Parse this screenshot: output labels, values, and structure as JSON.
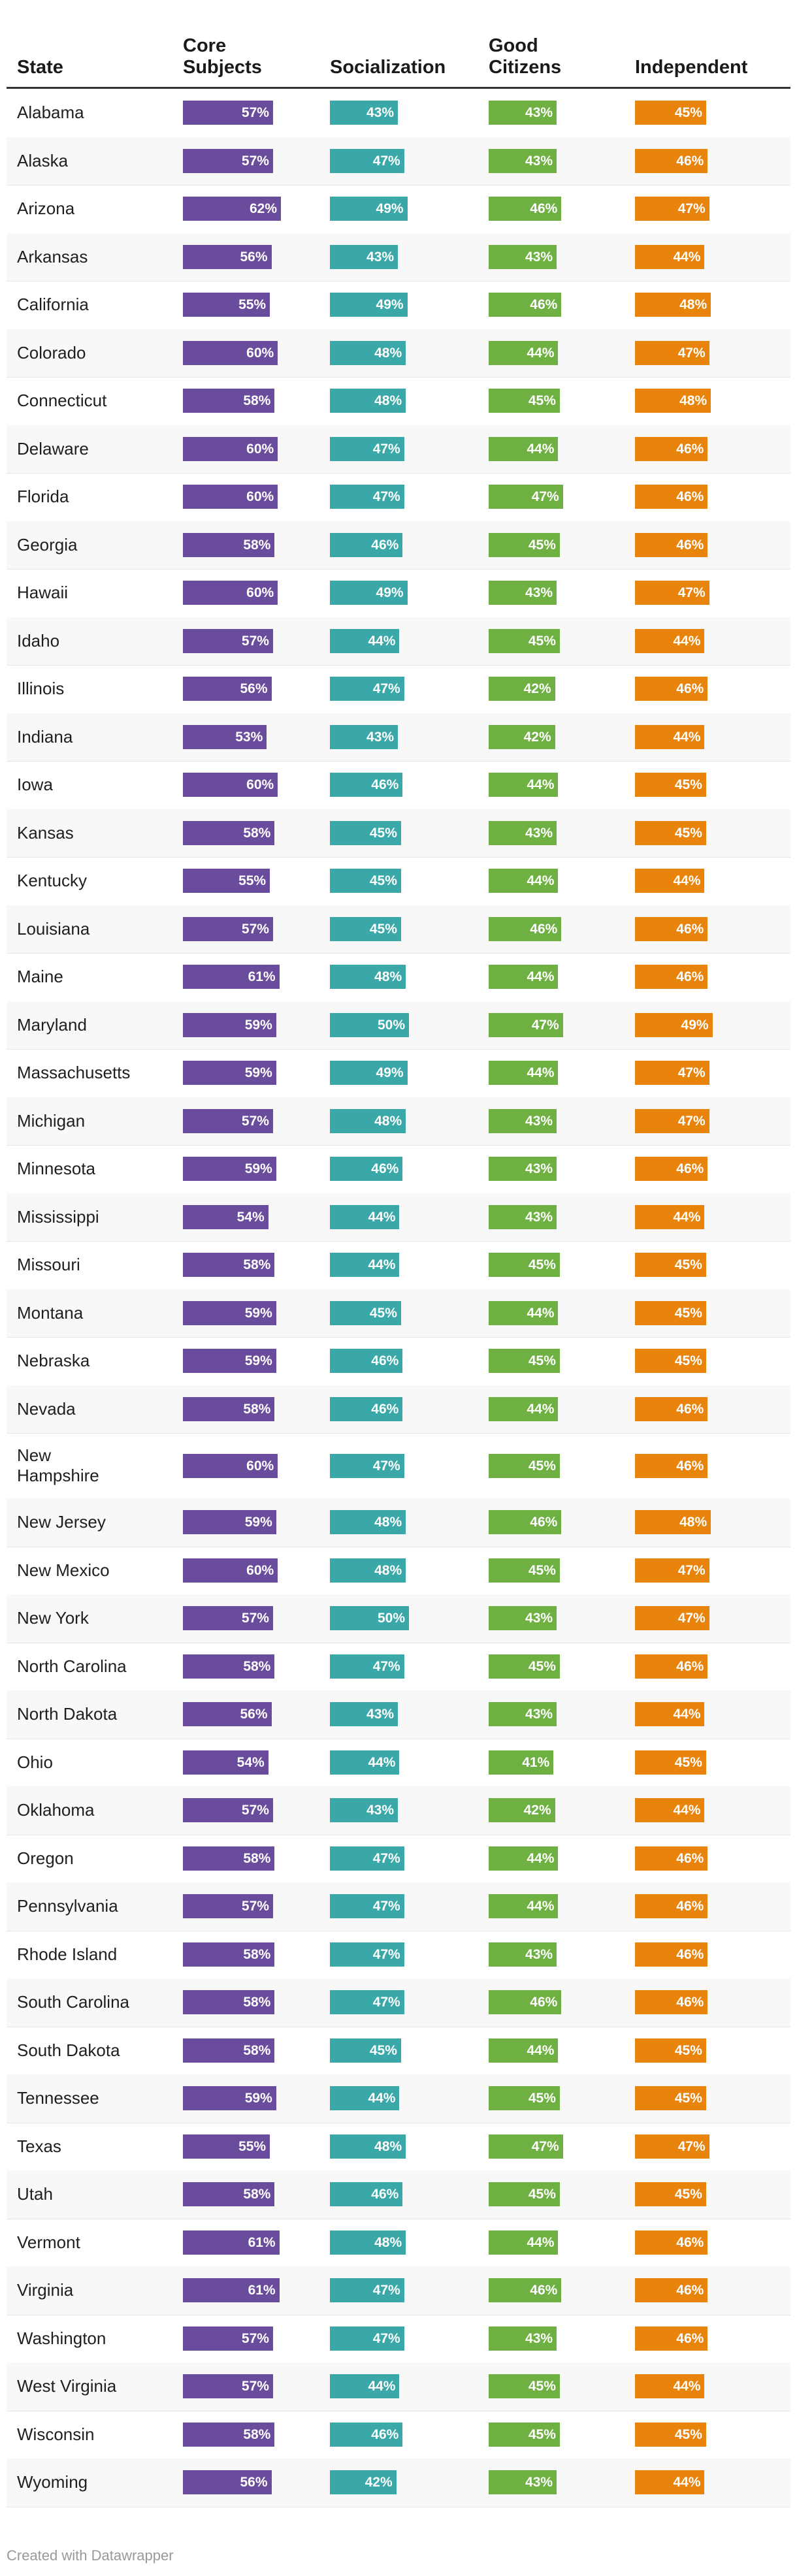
{
  "chart_data": {
    "type": "table",
    "columns": [
      {
        "key": "state",
        "label_lines": [
          "State"
        ]
      },
      {
        "key": "core",
        "label_lines": [
          "Core",
          "Subjects"
        ],
        "color": "#6a4c9c"
      },
      {
        "key": "social",
        "label_lines": [
          "Socialization"
        ],
        "color": "#3aa8a8"
      },
      {
        "key": "citizens",
        "label_lines": [
          "Good",
          "Citizens"
        ],
        "color": "#6fb043"
      },
      {
        "key": "independent",
        "label_lines": [
          "Independent"
        ],
        "color": "#e8830c"
      }
    ],
    "unit_suffix": "%",
    "rows": [
      {
        "state": "Alabama",
        "values": [
          57,
          43,
          43,
          45
        ]
      },
      {
        "state": "Alaska",
        "values": [
          57,
          47,
          43,
          46
        ]
      },
      {
        "state": "Arizona",
        "values": [
          62,
          49,
          46,
          47
        ]
      },
      {
        "state": "Arkansas",
        "values": [
          56,
          43,
          43,
          44
        ]
      },
      {
        "state": "California",
        "values": [
          55,
          49,
          46,
          48
        ]
      },
      {
        "state": "Colorado",
        "values": [
          60,
          48,
          44,
          47
        ]
      },
      {
        "state": "Connecticut",
        "values": [
          58,
          48,
          45,
          48
        ]
      },
      {
        "state": "Delaware",
        "values": [
          60,
          47,
          44,
          46
        ]
      },
      {
        "state": "Florida",
        "values": [
          60,
          47,
          47,
          46
        ]
      },
      {
        "state": "Georgia",
        "values": [
          58,
          46,
          45,
          46
        ]
      },
      {
        "state": "Hawaii",
        "values": [
          60,
          49,
          43,
          47
        ]
      },
      {
        "state": "Idaho",
        "values": [
          57,
          44,
          45,
          44
        ]
      },
      {
        "state": "Illinois",
        "values": [
          56,
          47,
          42,
          46
        ]
      },
      {
        "state": "Indiana",
        "values": [
          53,
          43,
          42,
          44
        ]
      },
      {
        "state": "Iowa",
        "values": [
          60,
          46,
          44,
          45
        ]
      },
      {
        "state": "Kansas",
        "values": [
          58,
          45,
          43,
          45
        ]
      },
      {
        "state": "Kentucky",
        "values": [
          55,
          45,
          44,
          44
        ]
      },
      {
        "state": "Louisiana",
        "values": [
          57,
          45,
          46,
          46
        ]
      },
      {
        "state": "Maine",
        "values": [
          61,
          48,
          44,
          46
        ]
      },
      {
        "state": "Maryland",
        "values": [
          59,
          50,
          47,
          49
        ]
      },
      {
        "state": "Massachusetts",
        "values": [
          59,
          49,
          44,
          47
        ]
      },
      {
        "state": "Michigan",
        "values": [
          57,
          48,
          43,
          47
        ]
      },
      {
        "state": "Minnesota",
        "values": [
          59,
          46,
          43,
          46
        ]
      },
      {
        "state": "Mississippi",
        "values": [
          54,
          44,
          43,
          44
        ]
      },
      {
        "state": "Missouri",
        "values": [
          58,
          44,
          45,
          45
        ]
      },
      {
        "state": "Montana",
        "values": [
          59,
          45,
          44,
          45
        ]
      },
      {
        "state": "Nebraska",
        "values": [
          59,
          46,
          45,
          45
        ]
      },
      {
        "state": "Nevada",
        "values": [
          58,
          46,
          44,
          46
        ]
      },
      {
        "state": "New Hampshire",
        "label_lines": [
          "New",
          "Hampshire"
        ],
        "values": [
          60,
          47,
          45,
          46
        ]
      },
      {
        "state": "New Jersey",
        "values": [
          59,
          48,
          46,
          48
        ]
      },
      {
        "state": "New Mexico",
        "values": [
          60,
          48,
          45,
          47
        ]
      },
      {
        "state": "New York",
        "values": [
          57,
          50,
          43,
          47
        ]
      },
      {
        "state": "North Carolina",
        "values": [
          58,
          47,
          45,
          46
        ]
      },
      {
        "state": "North Dakota",
        "values": [
          56,
          43,
          43,
          44
        ]
      },
      {
        "state": "Ohio",
        "values": [
          54,
          44,
          41,
          45
        ]
      },
      {
        "state": "Oklahoma",
        "values": [
          57,
          43,
          42,
          44
        ]
      },
      {
        "state": "Oregon",
        "values": [
          58,
          47,
          44,
          46
        ]
      },
      {
        "state": "Pennsylvania",
        "values": [
          57,
          47,
          44,
          46
        ]
      },
      {
        "state": "Rhode Island",
        "values": [
          58,
          47,
          43,
          46
        ]
      },
      {
        "state": "South Carolina",
        "values": [
          58,
          47,
          46,
          46
        ]
      },
      {
        "state": "South Dakota",
        "values": [
          58,
          45,
          44,
          45
        ]
      },
      {
        "state": "Tennessee",
        "values": [
          59,
          44,
          45,
          45
        ]
      },
      {
        "state": "Texas",
        "values": [
          55,
          48,
          47,
          47
        ]
      },
      {
        "state": "Utah",
        "values": [
          58,
          46,
          45,
          45
        ]
      },
      {
        "state": "Vermont",
        "values": [
          61,
          48,
          44,
          46
        ]
      },
      {
        "state": "Virginia",
        "values": [
          61,
          47,
          46,
          46
        ]
      },
      {
        "state": "Washington",
        "values": [
          57,
          47,
          43,
          46
        ]
      },
      {
        "state": "West Virginia",
        "values": [
          57,
          44,
          45,
          44
        ]
      },
      {
        "state": "Wisconsin",
        "values": [
          58,
          46,
          45,
          45
        ]
      },
      {
        "state": "Wyoming",
        "values": [
          56,
          42,
          43,
          44
        ]
      }
    ]
  },
  "footer": {
    "credit": "Created with Datawrapper"
  }
}
